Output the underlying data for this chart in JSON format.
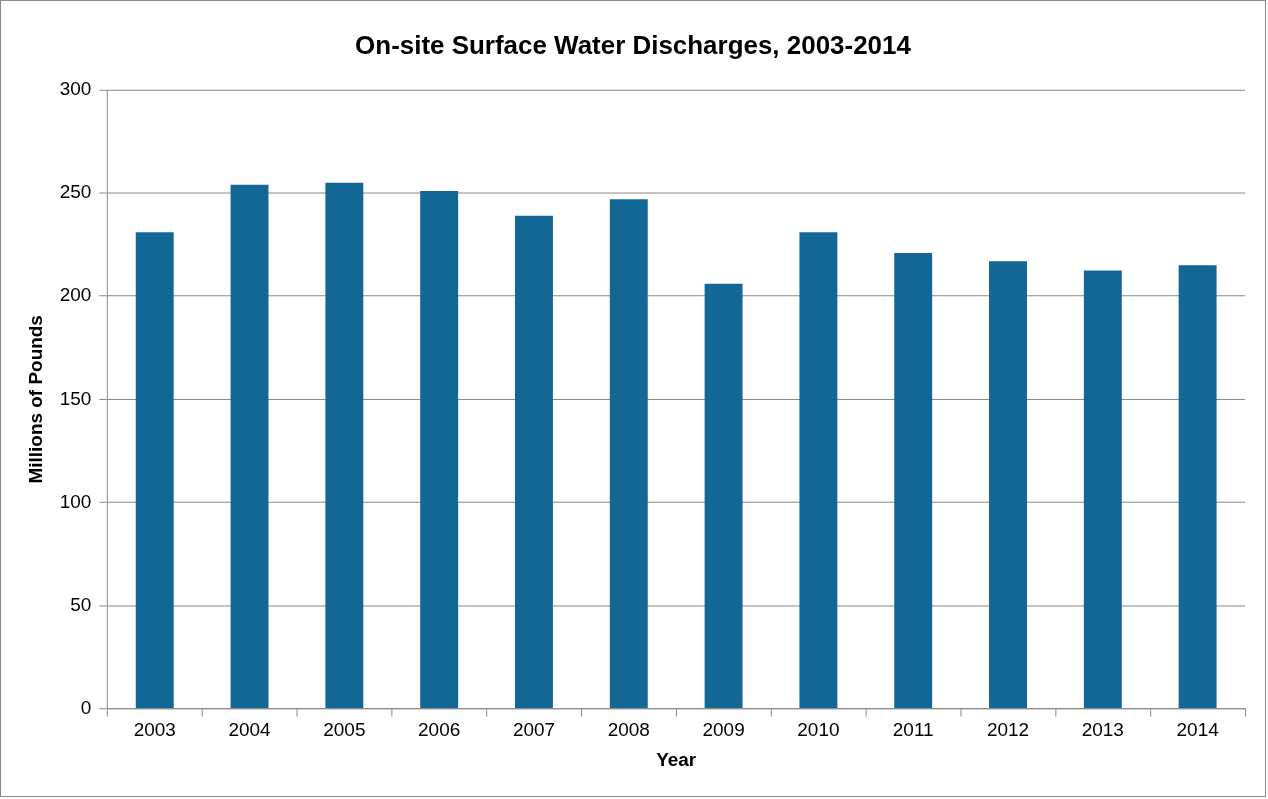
{
  "chart_data": {
    "type": "bar",
    "title": "On-site Surface Water Discharges, 2003-2014",
    "xlabel": "Year",
    "ylabel": "Millions of Pounds",
    "categories": [
      "2003",
      "2004",
      "2005",
      "2006",
      "2007",
      "2008",
      "2009",
      "2010",
      "2011",
      "2012",
      "2013",
      "2014"
    ],
    "values": [
      231,
      254,
      255,
      251,
      239,
      247,
      206,
      231,
      221,
      217,
      212.5,
      215
    ],
    "color": "#136795",
    "ylim": [
      0,
      300
    ],
    "yticks": [
      0,
      50,
      100,
      150,
      200,
      250,
      300
    ],
    "grid": "y",
    "legend": false
  }
}
